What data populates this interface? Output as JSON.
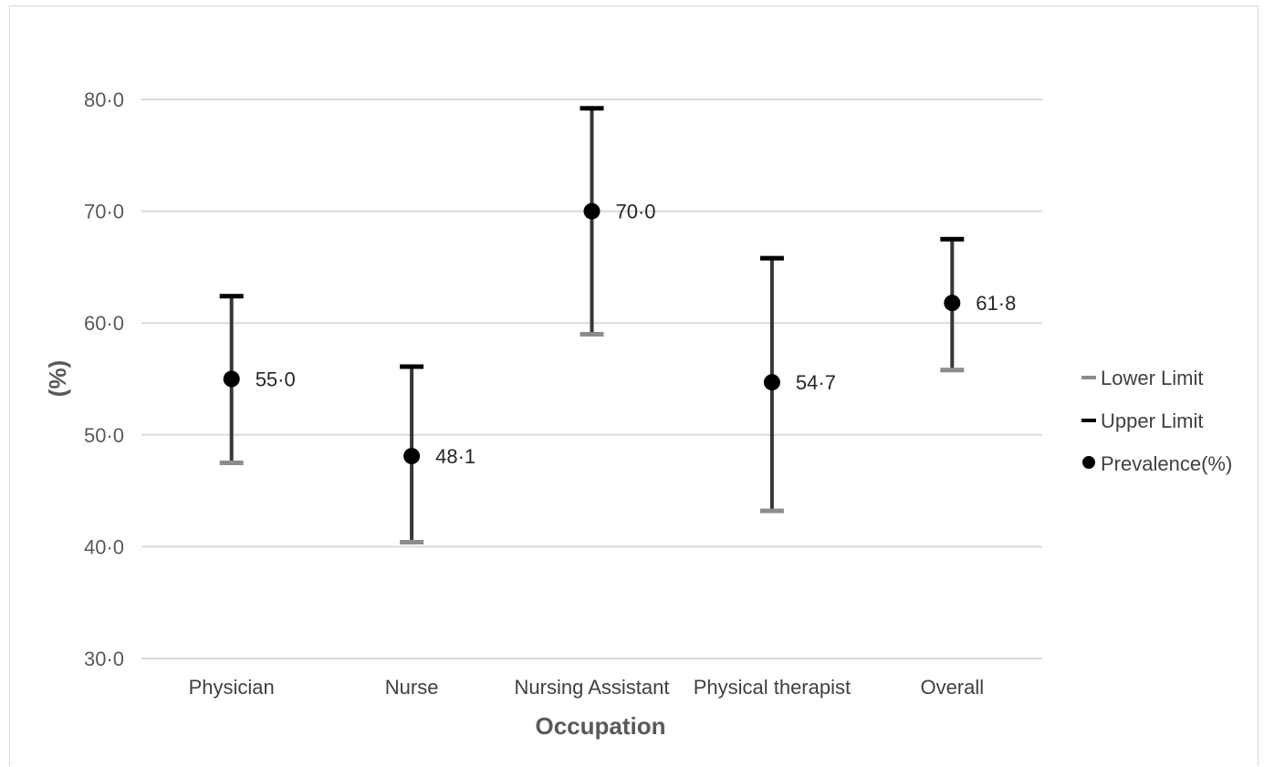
{
  "chart_data": {
    "type": "scatter",
    "title": "",
    "xlabel": "Occupation",
    "ylabel": "(%)",
    "ylim": [
      30,
      80
    ],
    "y_ticks": [
      "30·0",
      "40·0",
      "50·0",
      "60·0",
      "70·0",
      "80·0"
    ],
    "y_tick_values": [
      30,
      40,
      50,
      60,
      70,
      80
    ],
    "grid": true,
    "legend_position": "right",
    "categories": [
      "Physician",
      "Nurse",
      "Nursing Assistant",
      "Physical therapist",
      "Overall"
    ],
    "series": [
      {
        "name": "Lower Limit",
        "values": [
          47.5,
          40.4,
          59.0,
          43.2,
          55.8
        ],
        "color": "#8c8c8c",
        "marker": "dash"
      },
      {
        "name": "Upper Limit",
        "values": [
          62.4,
          56.1,
          79.2,
          65.8,
          67.5
        ],
        "color": "#000000",
        "marker": "dash"
      },
      {
        "name": "Prevalence(%)",
        "values": [
          55.0,
          48.1,
          70.0,
          54.7,
          61.8
        ],
        "color": "#000000",
        "marker": "circle"
      }
    ],
    "data_labels": [
      "55·0",
      "48·1",
      "70·0",
      "54·7",
      "61·8"
    ],
    "error_bar_color": "#3a3536",
    "grid_color": "#d9d9d9"
  }
}
